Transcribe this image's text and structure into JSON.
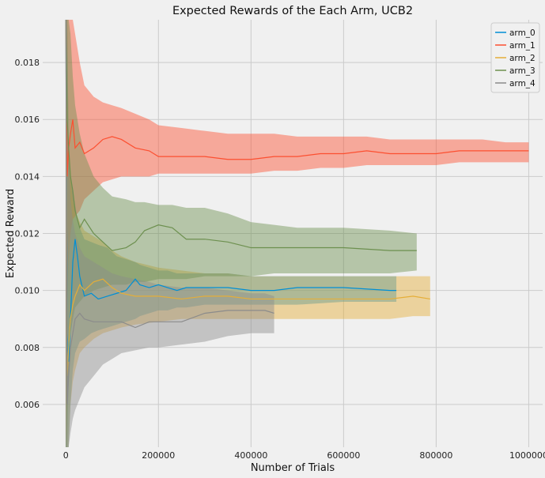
{
  "chart_data": {
    "type": "line",
    "title": "Expected Rewards of the Each Arm, UCB2",
    "xlabel": "Number of Trials",
    "ylabel": "Expected Reward",
    "xlim": [
      -50000,
      1030000
    ],
    "ylim": [
      0.0045,
      0.0195
    ],
    "xticks": [
      0,
      200000,
      400000,
      600000,
      800000,
      1000000
    ],
    "yticks": [
      0.006,
      0.008,
      0.01,
      0.012,
      0.014,
      0.016,
      0.018
    ],
    "xtick_labels": [
      "0",
      "200000",
      "400000",
      "600000",
      "800000",
      "1000000"
    ],
    "ytick_labels": [
      "0.006",
      "0.008",
      "0.010",
      "0.012",
      "0.014",
      "0.016",
      "0.018"
    ],
    "grid": true,
    "legend_position": "top-right",
    "series": [
      {
        "name": "arm_0",
        "color": "#008fd5",
        "x": [
          0,
          3000,
          6000,
          10000,
          15000,
          20000,
          25000,
          30000,
          40000,
          55000,
          70000,
          90000,
          110000,
          130000,
          150000,
          160000,
          180000,
          200000,
          220000,
          240000,
          260000,
          300000,
          350000,
          400000,
          450000,
          500000,
          600000,
          700000,
          714000
        ],
        "y": [
          0.0195,
          0.0085,
          0.0075,
          0.009,
          0.011,
          0.0118,
          0.0112,
          0.0105,
          0.0098,
          0.0099,
          0.0097,
          0.0098,
          0.0099,
          0.01,
          0.0104,
          0.0102,
          0.0101,
          0.0102,
          0.0101,
          0.01,
          0.0101,
          0.0101,
          0.0101,
          0.01,
          0.01,
          0.0101,
          0.0101,
          0.01,
          0.01
        ],
        "upper": [
          0.0195,
          0.0195,
          0.015,
          0.014,
          0.0135,
          0.013,
          0.0125,
          0.0122,
          0.0118,
          0.0117,
          0.0116,
          0.0115,
          0.0112,
          0.0111,
          0.011,
          0.0109,
          0.0108,
          0.0107,
          0.0107,
          0.0106,
          0.0106,
          0.0106,
          0.0106,
          0.0105,
          0.0105,
          0.0105,
          0.0105,
          0.0105,
          0.0105
        ],
        "lower": [
          0.0045,
          0.0045,
          0.0045,
          0.006,
          0.0072,
          0.0078,
          0.008,
          0.0082,
          0.0083,
          0.0085,
          0.0086,
          0.0087,
          0.0088,
          0.0089,
          0.009,
          0.0091,
          0.0092,
          0.0093,
          0.0093,
          0.0094,
          0.0094,
          0.0095,
          0.0095,
          0.0095,
          0.0095,
          0.0095,
          0.0096,
          0.0096,
          0.0096
        ]
      },
      {
        "name": "arm_1",
        "color": "#fc4f30",
        "x": [
          0,
          3000,
          6000,
          10000,
          15000,
          20000,
          30000,
          40000,
          60000,
          80000,
          100000,
          120000,
          150000,
          180000,
          200000,
          250000,
          300000,
          350000,
          400000,
          450000,
          500000,
          550000,
          600000,
          650000,
          700000,
          750000,
          800000,
          850000,
          900000,
          950000,
          1000000
        ],
        "y": [
          0.0195,
          0.014,
          0.015,
          0.0155,
          0.016,
          0.015,
          0.0152,
          0.0148,
          0.015,
          0.0153,
          0.0154,
          0.0153,
          0.015,
          0.0149,
          0.0147,
          0.0147,
          0.0147,
          0.0146,
          0.0146,
          0.0147,
          0.0147,
          0.0148,
          0.0148,
          0.0149,
          0.0148,
          0.0148,
          0.0148,
          0.0149,
          0.0149,
          0.0149,
          0.0149
        ],
        "upper": [
          0.0195,
          0.0195,
          0.0195,
          0.0195,
          0.0195,
          0.019,
          0.018,
          0.0172,
          0.0168,
          0.0166,
          0.0165,
          0.0164,
          0.0162,
          0.016,
          0.0158,
          0.0157,
          0.0156,
          0.0155,
          0.0155,
          0.0155,
          0.0154,
          0.0154,
          0.0154,
          0.0154,
          0.0153,
          0.0153,
          0.0153,
          0.0153,
          0.0153,
          0.0152,
          0.0152
        ],
        "lower": [
          0.0045,
          0.009,
          0.011,
          0.012,
          0.0125,
          0.0126,
          0.0128,
          0.0132,
          0.0135,
          0.0138,
          0.0139,
          0.014,
          0.014,
          0.014,
          0.0141,
          0.0141,
          0.0141,
          0.0141,
          0.0141,
          0.0142,
          0.0142,
          0.0143,
          0.0143,
          0.0144,
          0.0144,
          0.0144,
          0.0144,
          0.0145,
          0.0145,
          0.0145,
          0.0145
        ]
      },
      {
        "name": "arm_2",
        "color": "#e5ae38",
        "x": [
          0,
          3000,
          6000,
          10000,
          15000,
          20000,
          30000,
          40000,
          60000,
          80000,
          100000,
          120000,
          150000,
          200000,
          250000,
          300000,
          350000,
          400000,
          450000,
          500000,
          600000,
          700000,
          750000,
          787000
        ],
        "y": [
          0.0195,
          0.007,
          0.008,
          0.009,
          0.0095,
          0.0098,
          0.0102,
          0.01,
          0.0103,
          0.0104,
          0.0101,
          0.0099,
          0.0098,
          0.0098,
          0.0097,
          0.0098,
          0.0098,
          0.0097,
          0.0097,
          0.0097,
          0.0097,
          0.0097,
          0.0098,
          0.0097
        ],
        "upper": [
          0.0195,
          0.0195,
          0.015,
          0.014,
          0.0132,
          0.0128,
          0.0124,
          0.0121,
          0.0119,
          0.0117,
          0.0114,
          0.0112,
          0.011,
          0.0108,
          0.0107,
          0.0106,
          0.0106,
          0.0105,
          0.0105,
          0.0105,
          0.0105,
          0.0105,
          0.0105,
          0.0105
        ],
        "lower": [
          0.0045,
          0.0045,
          0.0045,
          0.006,
          0.0068,
          0.0072,
          0.0078,
          0.008,
          0.0083,
          0.0085,
          0.0086,
          0.0087,
          0.0088,
          0.0089,
          0.009,
          0.009,
          0.009,
          0.009,
          0.009,
          0.009,
          0.009,
          0.009,
          0.0091,
          0.0091
        ]
      },
      {
        "name": "arm_3",
        "color": "#6d904f",
        "x": [
          0,
          3000,
          6000,
          10000,
          15000,
          20000,
          30000,
          40000,
          60000,
          80000,
          100000,
          130000,
          150000,
          170000,
          200000,
          230000,
          260000,
          300000,
          350000,
          400000,
          450000,
          500000,
          600000,
          700000,
          758000
        ],
        "y": [
          0.0195,
          0.016,
          0.015,
          0.014,
          0.0135,
          0.0128,
          0.0122,
          0.0125,
          0.012,
          0.0117,
          0.0114,
          0.0115,
          0.0117,
          0.0121,
          0.0123,
          0.0122,
          0.0118,
          0.0118,
          0.0117,
          0.0115,
          0.0115,
          0.0115,
          0.0115,
          0.0114,
          0.0114
        ],
        "upper": [
          0.0195,
          0.0195,
          0.0195,
          0.019,
          0.0175,
          0.0165,
          0.0155,
          0.0148,
          0.014,
          0.0136,
          0.0133,
          0.0132,
          0.0131,
          0.0131,
          0.013,
          0.013,
          0.0129,
          0.0129,
          0.0127,
          0.0124,
          0.0123,
          0.0122,
          0.0122,
          0.0121,
          0.012
        ],
        "lower": [
          0.0045,
          0.0045,
          0.007,
          0.0085,
          0.009,
          0.0094,
          0.0096,
          0.0098,
          0.01,
          0.0101,
          0.0102,
          0.0102,
          0.0103,
          0.0103,
          0.0104,
          0.0104,
          0.0104,
          0.0105,
          0.0105,
          0.0105,
          0.0106,
          0.0106,
          0.0106,
          0.0106,
          0.0107
        ]
      },
      {
        "name": "arm_4",
        "color": "#8b8b8b",
        "x": [
          0,
          3000,
          6000,
          10000,
          15000,
          20000,
          30000,
          40000,
          60000,
          80000,
          100000,
          120000,
          150000,
          180000,
          200000,
          250000,
          300000,
          350000,
          400000,
          430000,
          450000
        ],
        "y": [
          0.0195,
          0.006,
          0.007,
          0.008,
          0.0085,
          0.009,
          0.0092,
          0.009,
          0.0089,
          0.0089,
          0.0089,
          0.0089,
          0.0087,
          0.0089,
          0.0089,
          0.0089,
          0.0092,
          0.0093,
          0.0093,
          0.0093,
          0.0092
        ],
        "upper": [
          0.0195,
          0.0195,
          0.015,
          0.0132,
          0.0125,
          0.012,
          0.0115,
          0.0112,
          0.011,
          0.0108,
          0.0106,
          0.0105,
          0.0104,
          0.0103,
          0.0102,
          0.0101,
          0.0101,
          0.01,
          0.0099,
          0.0099,
          0.0098
        ],
        "lower": [
          0.0045,
          0.0045,
          0.0045,
          0.005,
          0.0055,
          0.0058,
          0.0062,
          0.0066,
          0.007,
          0.0074,
          0.0076,
          0.0078,
          0.0079,
          0.008,
          0.008,
          0.0081,
          0.0082,
          0.0084,
          0.0085,
          0.0085,
          0.0085
        ]
      }
    ]
  }
}
